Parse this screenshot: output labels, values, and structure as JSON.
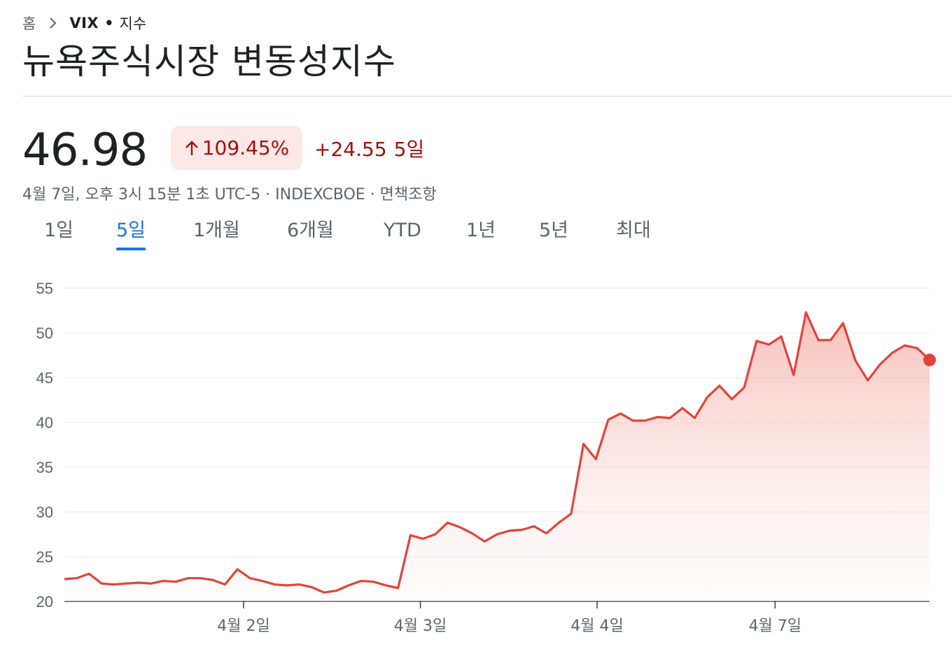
{
  "breadcrumb": {
    "home": "홈",
    "ticker": "VIX",
    "separator": "•",
    "type": "지수"
  },
  "title": "뉴욕주식시장 변동성지수",
  "quote": {
    "price": "46.98",
    "change_percent": "109.45%",
    "change_absolute": "+24.55",
    "period_label": "5일",
    "meta": "4월 7일, 오후 3시 15분 1초 UTC-5 · INDEXCBOE · 면책조항"
  },
  "tabs": [
    {
      "label": "1일",
      "active": false
    },
    {
      "label": "5일",
      "active": true
    },
    {
      "label": "1개월",
      "active": false
    },
    {
      "label": "6개월",
      "active": false
    },
    {
      "label": "YTD",
      "active": false
    },
    {
      "label": "1년",
      "active": false
    },
    {
      "label": "5년",
      "active": false
    },
    {
      "label": "최대",
      "active": false
    }
  ],
  "colors": {
    "line": "#e0443a",
    "accent": "#1a73e8",
    "negative_text": "#a50e0e",
    "badge_bg": "#fce8e6"
  },
  "chart_data": {
    "type": "area",
    "series": [
      {
        "values": [
          22.5,
          22.6,
          23.1,
          22.0,
          21.9,
          22.0,
          22.1,
          22.0,
          22.3,
          22.2,
          22.6,
          22.6,
          22.4,
          21.9,
          23.6,
          22.6,
          22.3,
          21.9,
          21.8,
          21.9,
          21.6,
          21.0,
          21.2,
          21.8,
          22.3,
          22.2,
          21.8,
          21.5,
          27.4,
          27.0,
          27.5,
          28.8,
          28.3,
          27.6,
          26.7,
          27.5,
          27.9,
          28.0,
          28.4,
          27.6,
          28.8,
          29.8,
          37.6,
          35.9,
          40.3,
          41.0,
          40.2,
          40.2,
          40.6,
          40.5,
          41.6,
          40.5,
          42.8,
          44.1,
          42.6,
          43.9,
          49.1,
          48.7,
          49.6,
          45.3,
          52.3,
          49.2,
          49.2,
          51.1,
          46.9,
          44.7,
          46.5,
          47.8,
          48.6,
          48.3,
          46.98
        ]
      }
    ],
    "x_labels": [
      "4월 2일",
      "4월 3일",
      "4월 4일",
      "4월 7일"
    ],
    "x_label_positions": [
      14.5,
      28.8,
      43.1,
      57.5
    ],
    "y_ticks": [
      20,
      25,
      30,
      35,
      40,
      45,
      50,
      55
    ],
    "ylim": [
      20,
      55
    ],
    "grid": true,
    "last_value": 46.98
  }
}
